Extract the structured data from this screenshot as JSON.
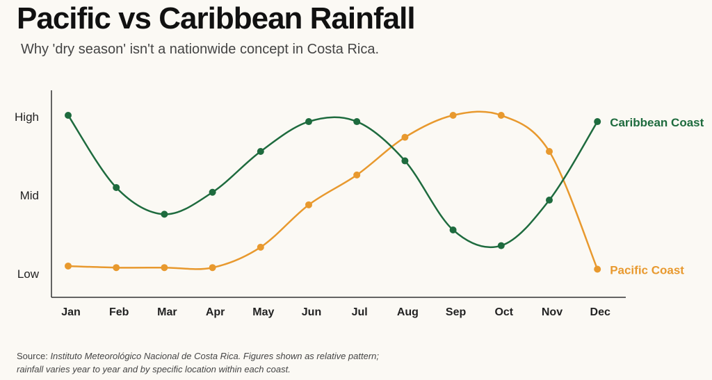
{
  "title": "Pacific vs Caribbean Rainfall",
  "subtitle": "Why 'dry season' isn't a nationwide concept in Costa Rica.",
  "source": {
    "label": "Source:",
    "line1": "Instituto Meteorológico Nacional de Costa Rica. Figures shown as relative pattern;",
    "line2": "rainfall varies year to year and by specific location within each coast."
  },
  "chart_data": {
    "type": "line",
    "categories": [
      "Jan",
      "Feb",
      "Mar",
      "Apr",
      "May",
      "Jun",
      "Jul",
      "Aug",
      "Sep",
      "Oct",
      "Nov",
      "Dec"
    ],
    "y_tick_labels": [
      "Low",
      "Mid",
      "High"
    ],
    "y_tick_values": [
      0,
      0.5,
      1
    ],
    "ylim": [
      0,
      1
    ],
    "grid": false,
    "legend": "direct labels at right end of lines",
    "series": [
      {
        "name": "Caribbean Coast",
        "color": "#1e6b3e",
        "values": [
          1.0,
          0.54,
          0.37,
          0.51,
          0.77,
          0.96,
          0.96,
          0.71,
          0.27,
          0.17,
          0.46,
          0.96
        ]
      },
      {
        "name": "Pacific Coast",
        "color": "#e8992e",
        "values": [
          0.04,
          0.03,
          0.03,
          0.03,
          0.16,
          0.43,
          0.62,
          0.86,
          1.0,
          1.0,
          0.77,
          0.02
        ]
      }
    ]
  }
}
